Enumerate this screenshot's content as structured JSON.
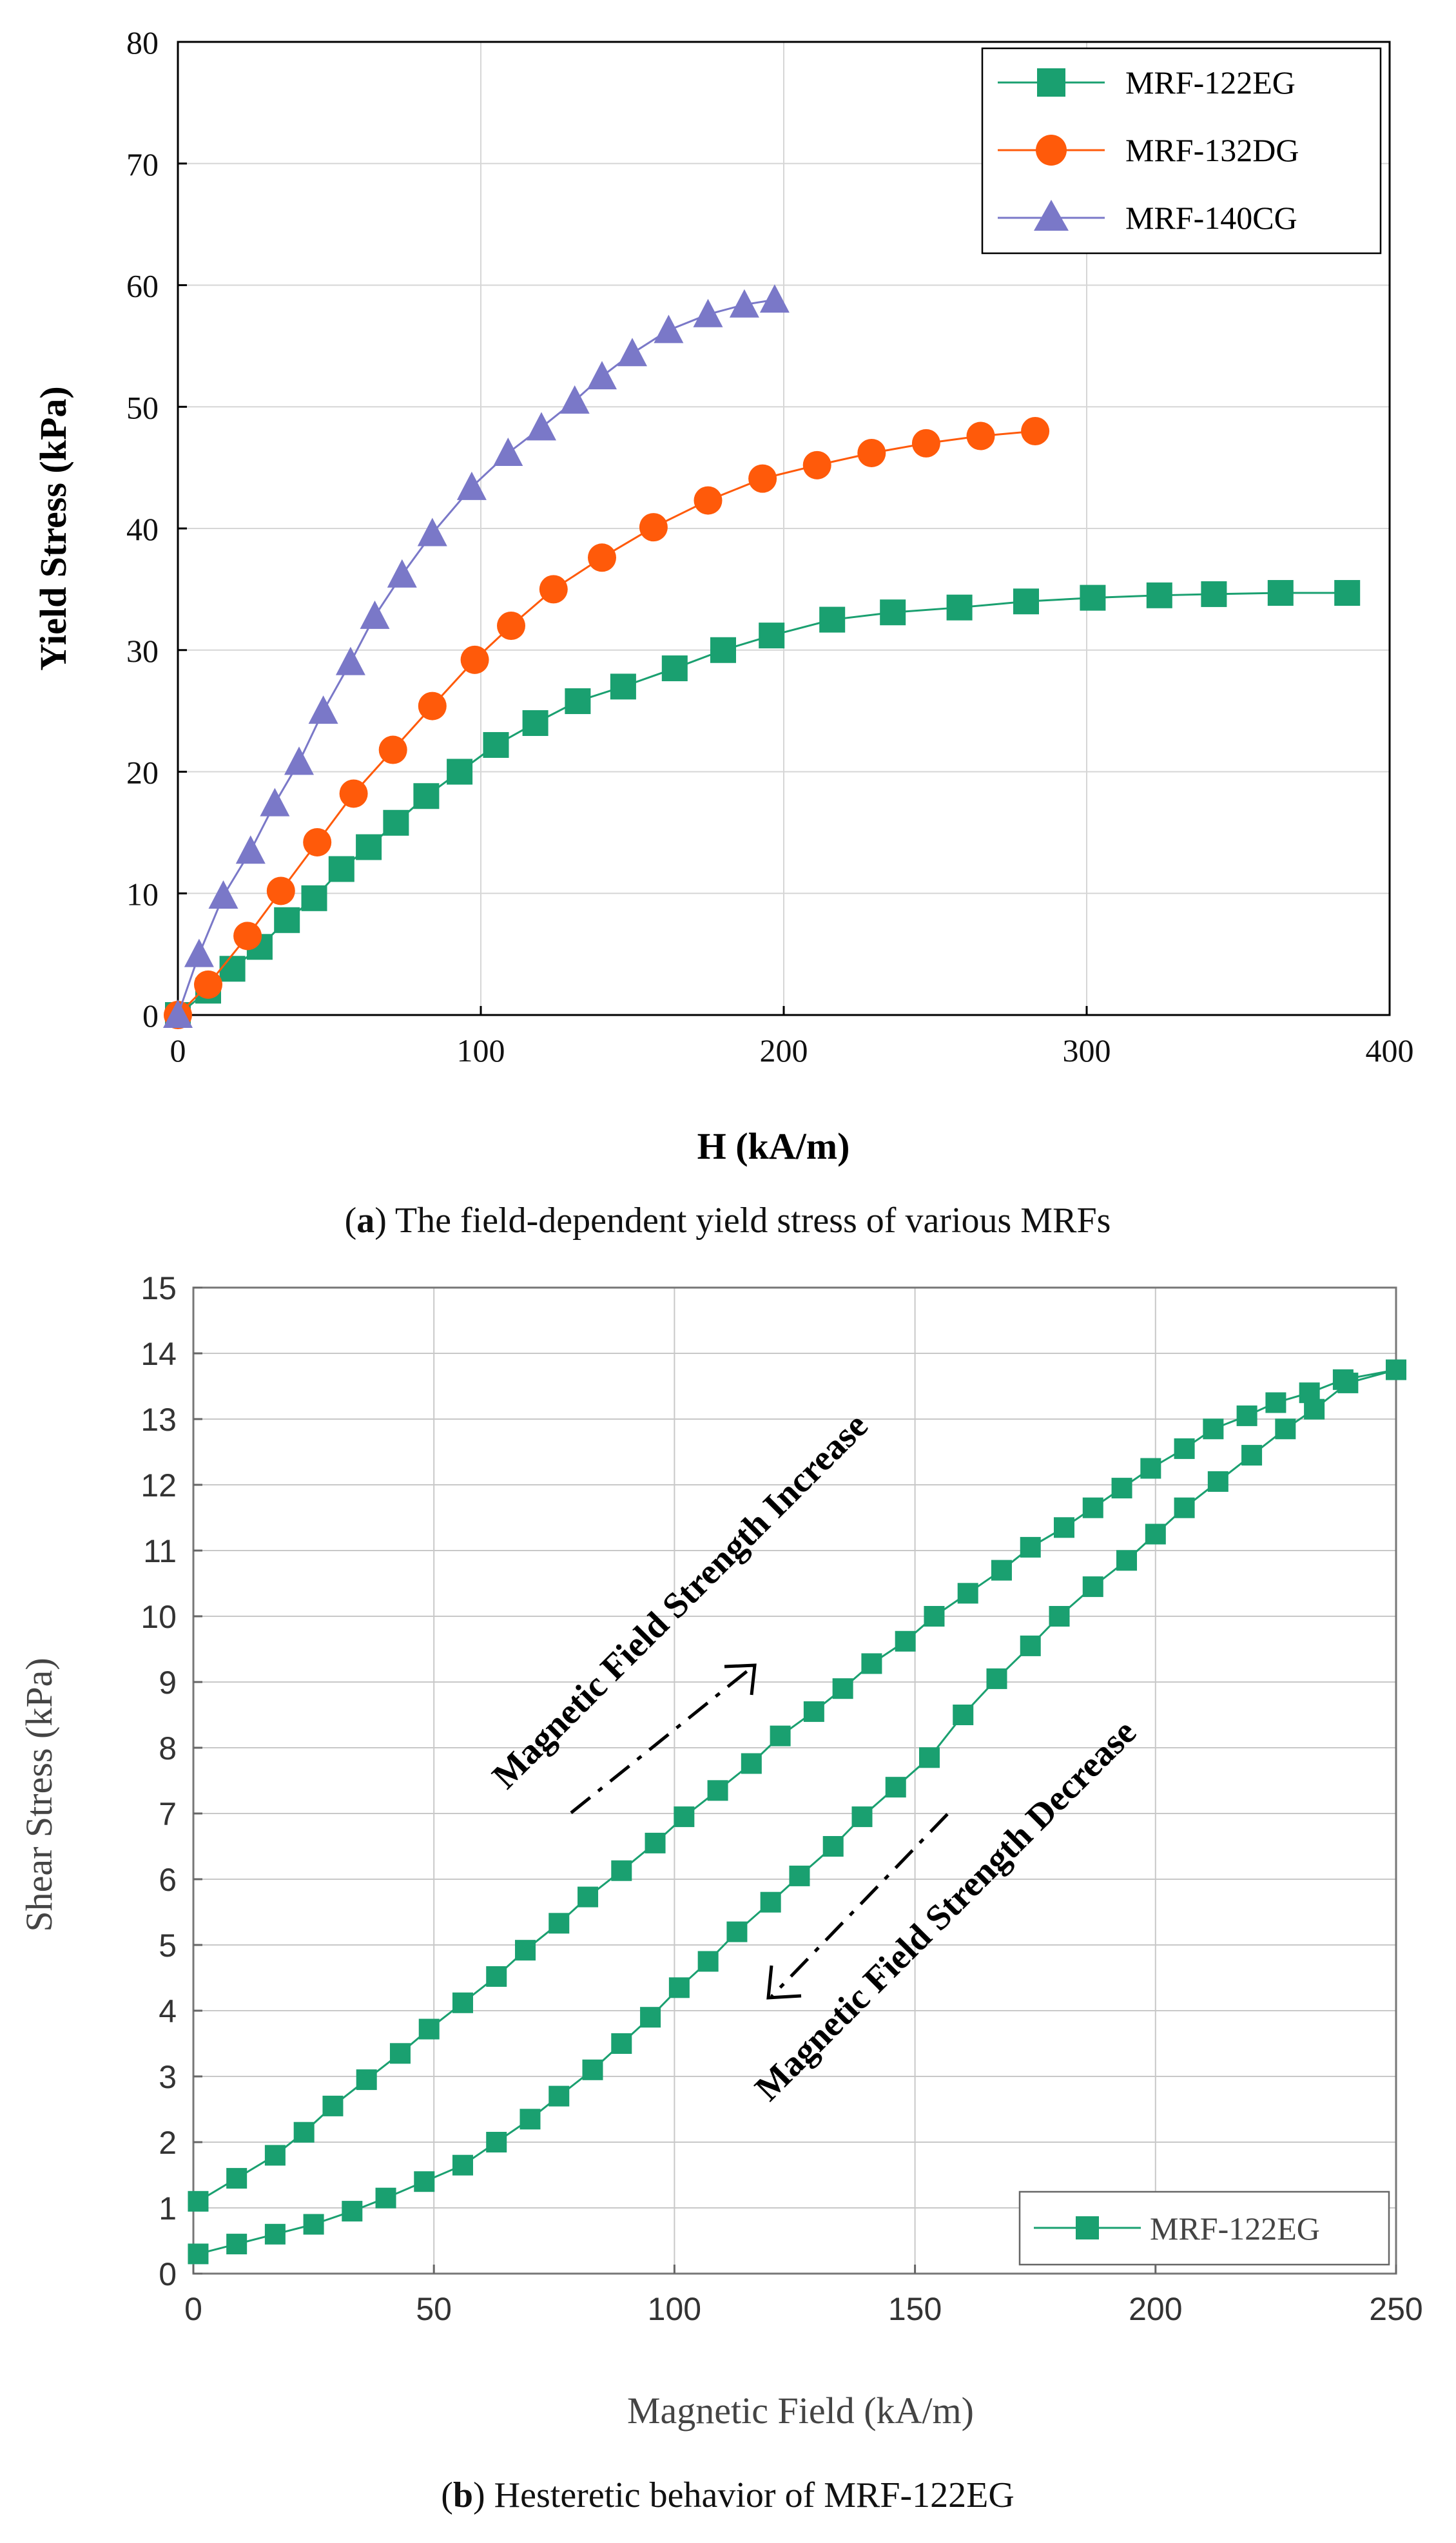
{
  "chart_data": [
    {
      "type": "line",
      "title": "",
      "caption": {
        "label": "a",
        "text": ") The field-dependent yield stress of various MRFs"
      },
      "xlabel": "H (kA/m)",
      "ylabel": "Yield Stress (kPa)",
      "xlim": [
        0,
        400
      ],
      "ylim": [
        0,
        80
      ],
      "xticks": [
        "0",
        "100",
        "200",
        "300",
        "400"
      ],
      "yticks": [
        "0",
        "10",
        "20",
        "30",
        "40",
        "50",
        "60",
        "70",
        "80"
      ],
      "grid": true,
      "legend_position": "top-right",
      "series": [
        {
          "name": "MRF-122EG",
          "color": "#1aa070",
          "marker": "square",
          "x": [
            0,
            10,
            18,
            27,
            36,
            45,
            54,
            63,
            72,
            82,
            93,
            105,
            118,
            132,
            147,
            164,
            180,
            196,
            216,
            236,
            258,
            280,
            302,
            324,
            342,
            364,
            386
          ],
          "y": [
            0,
            2,
            3.8,
            5.6,
            7.8,
            9.6,
            12,
            13.8,
            15.8,
            18,
            20,
            22.2,
            24,
            25.8,
            27,
            28.5,
            30,
            31.2,
            32.5,
            33.1,
            33.5,
            34,
            34.3,
            34.5,
            34.6,
            34.7,
            34.7
          ]
        },
        {
          "name": "MRF-132DG",
          "color": "#ff5a0a",
          "marker": "circle",
          "x": [
            0,
            10,
            23,
            34,
            46,
            58,
            71,
            84,
            98,
            110,
            124,
            140,
            157,
            175,
            193,
            211,
            229,
            247,
            265,
            283
          ],
          "y": [
            0,
            2.5,
            6.5,
            10.2,
            14.2,
            18.2,
            21.8,
            25.4,
            29.2,
            32,
            35,
            37.6,
            40.1,
            42.3,
            44.1,
            45.2,
            46.2,
            47,
            47.6,
            48
          ]
        },
        {
          "name": "MRF-140CG",
          "color": "#7a78c8",
          "marker": "triangle",
          "x": [
            0,
            7,
            15,
            24,
            32,
            40,
            48,
            57,
            65,
            74,
            84,
            97,
            109,
            120,
            131,
            140,
            150,
            162,
            175,
            187,
            197
          ],
          "y": [
            0,
            5,
            9.8,
            13.5,
            17.4,
            20.8,
            25,
            29,
            32.8,
            36.2,
            39.6,
            43.4,
            46.2,
            48.3,
            50.5,
            52.5,
            54.4,
            56.3,
            57.6,
            58.4,
            58.8
          ]
        }
      ]
    },
    {
      "type": "line",
      "title": "",
      "caption": {
        "label": "b",
        "text": ") Hesteretic behavior of MRF-122EG"
      },
      "xlabel": "Magnetic Field (kA/m)",
      "ylabel": "Shear Stress (kPa)",
      "xlim": [
        0,
        250
      ],
      "ylim": [
        0,
        15
      ],
      "xticks": [
        "0",
        "50",
        "100",
        "150",
        "200",
        "250"
      ],
      "yticks": [
        "0",
        "1",
        "2",
        "3",
        "4",
        "5",
        "6",
        "7",
        "8",
        "9",
        "10",
        "11",
        "12",
        "13",
        "14",
        "15"
      ],
      "grid": true,
      "legend_position": "bottom-right",
      "annotations": [
        "Magnetic Field Strength Increase",
        "Magnetic Field Strength Decrease"
      ],
      "series": [
        {
          "name": "MRF-122EG",
          "color": "#1aa070",
          "marker": "square",
          "x": [
            1,
            9,
            17,
            23,
            29,
            36,
            43,
            49,
            56,
            63,
            69,
            76,
            82,
            89,
            96,
            102,
            109,
            116,
            122,
            129,
            135,
            141,
            148,
            154,
            161,
            168,
            174,
            181,
            187,
            193,
            199,
            206,
            212,
            219,
            225,
            232,
            239,
            250
          ],
          "y": [
            1.1,
            1.45,
            1.8,
            2.15,
            2.55,
            2.95,
            3.35,
            3.72,
            4.12,
            4.52,
            4.92,
            5.33,
            5.73,
            6.13,
            6.55,
            6.95,
            7.35,
            7.76,
            8.18,
            8.55,
            8.9,
            9.28,
            9.62,
            10,
            10.35,
            10.7,
            11.05,
            11.35,
            11.65,
            11.95,
            12.25,
            12.55,
            12.85,
            13.05,
            13.25,
            13.4,
            13.6,
            13.75
          ],
          "x_return": [
            240,
            233,
            227,
            220,
            213,
            206,
            200,
            194,
            187,
            180,
            174,
            167,
            160,
            153,
            146,
            139,
            133,
            126,
            120,
            113,
            107,
            101,
            95,
            89,
            83,
            76,
            70,
            63,
            56,
            48,
            40,
            33,
            25,
            17,
            9,
            1
          ],
          "y_return": [
            13.55,
            13.15,
            12.85,
            12.45,
            12.05,
            11.65,
            11.25,
            10.85,
            10.45,
            10,
            9.55,
            9.05,
            8.5,
            7.85,
            7.4,
            6.95,
            6.5,
            6.05,
            5.65,
            5.2,
            4.75,
            4.35,
            3.9,
            3.5,
            3.1,
            2.7,
            2.35,
            2,
            1.65,
            1.4,
            1.15,
            0.95,
            0.75,
            0.6,
            0.45,
            0.3
          ]
        }
      ]
    }
  ]
}
